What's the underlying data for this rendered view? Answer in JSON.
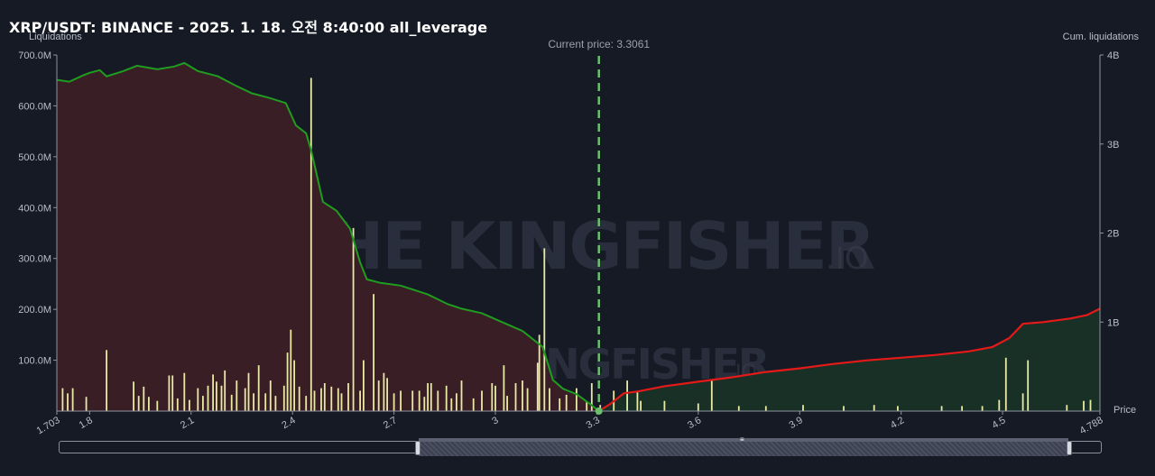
{
  "title": "XRP/USDT: BINANCE - 2025. 1. 18. 오전 8:40:00 all_leverage",
  "watermark": {
    "main": "THE KINGFISHER",
    "suffix": ".IO"
  },
  "colors": {
    "background": "#161a25",
    "short_fill": "#3a1e26",
    "long_fill": "#183025",
    "short_cum_line": "#1f9d1f",
    "long_cum_line": "#e61919",
    "bars": "#e8eaa4",
    "current_price_line": "#6cbf6c"
  },
  "chart_data": {
    "type": "bar",
    "title": "XRP/USDT: BINANCE - 2025. 1. 18. 오전 8:40:00 all_leverage",
    "xlabel": "Price",
    "ylabel": "Liquidations",
    "y2label": "Cum. liquidations",
    "xlim": [
      1.703,
      4.788
    ],
    "ylim": [
      0,
      700000000
    ],
    "y2lim": [
      0,
      4000000000
    ],
    "x_ticks": [
      "1.703",
      "1.8",
      "2.1",
      "2.4",
      "2.7",
      "3",
      "3.3",
      "3.6",
      "3.9",
      "4.2",
      "4.5",
      "4.788"
    ],
    "y_ticks": [
      "100.0M",
      "200.0M",
      "300.0M",
      "400.0M",
      "500.0M",
      "600.0M",
      "700.0M"
    ],
    "y2_ticks": [
      "1B",
      "2B",
      "3B",
      "4B"
    ],
    "current_price": 3.3061,
    "current_price_label": "Current price: 3.3061",
    "liquidation_bars": [
      [
        1.72,
        45
      ],
      [
        1.735,
        35
      ],
      [
        1.75,
        45
      ],
      [
        1.79,
        28
      ],
      [
        1.85,
        120
      ],
      [
        1.93,
        58
      ],
      [
        1.945,
        30
      ],
      [
        1.96,
        48
      ],
      [
        1.975,
        28
      ],
      [
        2.0,
        20
      ],
      [
        2.035,
        70
      ],
      [
        2.045,
        70
      ],
      [
        2.06,
        25
      ],
      [
        2.08,
        75
      ],
      [
        2.095,
        22
      ],
      [
        2.12,
        45
      ],
      [
        2.135,
        30
      ],
      [
        2.15,
        50
      ],
      [
        2.165,
        72
      ],
      [
        2.175,
        58
      ],
      [
        2.19,
        50
      ],
      [
        2.2,
        80
      ],
      [
        2.22,
        32
      ],
      [
        2.235,
        60
      ],
      [
        2.26,
        45
      ],
      [
        2.27,
        75
      ],
      [
        2.285,
        35
      ],
      [
        2.3,
        90
      ],
      [
        2.32,
        35
      ],
      [
        2.335,
        60
      ],
      [
        2.35,
        30
      ],
      [
        2.375,
        50
      ],
      [
        2.385,
        115
      ],
      [
        2.395,
        160
      ],
      [
        2.405,
        100
      ],
      [
        2.42,
        48
      ],
      [
        2.44,
        30
      ],
      [
        2.455,
        655
      ],
      [
        2.465,
        40
      ],
      [
        2.485,
        45
      ],
      [
        2.495,
        55
      ],
      [
        2.515,
        48
      ],
      [
        2.535,
        45
      ],
      [
        2.545,
        35
      ],
      [
        2.565,
        55
      ],
      [
        2.58,
        360
      ],
      [
        2.6,
        40
      ],
      [
        2.61,
        100
      ],
      [
        2.64,
        230
      ],
      [
        2.655,
        60
      ],
      [
        2.67,
        75
      ],
      [
        2.68,
        65
      ],
      [
        2.7,
        35
      ],
      [
        2.72,
        40
      ],
      [
        2.755,
        40
      ],
      [
        2.775,
        40
      ],
      [
        2.79,
        28
      ],
      [
        2.8,
        55
      ],
      [
        2.81,
        55
      ],
      [
        2.83,
        40
      ],
      [
        2.855,
        50
      ],
      [
        2.87,
        25
      ],
      [
        2.885,
        35
      ],
      [
        2.9,
        60
      ],
      [
        2.935,
        25
      ],
      [
        2.96,
        40
      ],
      [
        2.99,
        55
      ],
      [
        3.0,
        50
      ],
      [
        3.025,
        90
      ],
      [
        3.035,
        30
      ],
      [
        3.06,
        55
      ],
      [
        3.08,
        60
      ],
      [
        3.095,
        45
      ],
      [
        3.125,
        95
      ],
      [
        3.13,
        150
      ],
      [
        3.145,
        320
      ],
      [
        3.16,
        45
      ],
      [
        3.19,
        25
      ],
      [
        3.21,
        32
      ],
      [
        3.24,
        45
      ],
      [
        3.27,
        18
      ],
      [
        3.285,
        55
      ],
      [
        3.31,
        12
      ],
      [
        3.35,
        40
      ],
      [
        3.39,
        60
      ],
      [
        3.42,
        40
      ],
      [
        3.43,
        20
      ],
      [
        3.5,
        20
      ],
      [
        3.6,
        15
      ],
      [
        3.64,
        60
      ],
      [
        3.72,
        10
      ],
      [
        3.8,
        10
      ],
      [
        3.91,
        12
      ],
      [
        4.03,
        10
      ],
      [
        4.12,
        12
      ],
      [
        4.19,
        10
      ],
      [
        4.32,
        10
      ],
      [
        4.38,
        10
      ],
      [
        4.44,
        10
      ],
      [
        4.49,
        22
      ],
      [
        4.51,
        105
      ],
      [
        4.56,
        35
      ],
      [
        4.575,
        100
      ],
      [
        4.69,
        12
      ],
      [
        4.74,
        20
      ],
      [
        4.76,
        22
      ]
    ],
    "short_cumulative": [
      [
        1.703,
        3.72
      ],
      [
        1.74,
        3.7
      ],
      [
        1.78,
        3.77
      ],
      [
        1.8,
        3.8
      ],
      [
        1.83,
        3.83
      ],
      [
        1.85,
        3.76
      ],
      [
        1.9,
        3.82
      ],
      [
        1.94,
        3.88
      ],
      [
        2.0,
        3.84
      ],
      [
        2.05,
        3.87
      ],
      [
        2.08,
        3.91
      ],
      [
        2.12,
        3.82
      ],
      [
        2.18,
        3.76
      ],
      [
        2.23,
        3.66
      ],
      [
        2.28,
        3.57
      ],
      [
        2.33,
        3.52
      ],
      [
        2.38,
        3.46
      ],
      [
        2.41,
        3.21
      ],
      [
        2.44,
        3.12
      ],
      [
        2.455,
        2.93
      ],
      [
        2.49,
        2.35
      ],
      [
        2.53,
        2.25
      ],
      [
        2.57,
        2.05
      ],
      [
        2.6,
        1.67
      ],
      [
        2.62,
        1.48
      ],
      [
        2.66,
        1.44
      ],
      [
        2.72,
        1.41
      ],
      [
        2.8,
        1.31
      ],
      [
        2.86,
        1.2
      ],
      [
        2.9,
        1.15
      ],
      [
        2.96,
        1.1
      ],
      [
        3.02,
        1.0
      ],
      [
        3.08,
        0.9
      ],
      [
        3.14,
        0.72
      ],
      [
        3.17,
        0.35
      ],
      [
        3.2,
        0.25
      ],
      [
        3.24,
        0.19
      ],
      [
        3.28,
        0.08
      ],
      [
        3.3061,
        0.0
      ]
    ],
    "long_cumulative": [
      [
        3.3061,
        0.0
      ],
      [
        3.34,
        0.08
      ],
      [
        3.38,
        0.2
      ],
      [
        3.42,
        0.22
      ],
      [
        3.5,
        0.28
      ],
      [
        3.6,
        0.33
      ],
      [
        3.7,
        0.38
      ],
      [
        3.8,
        0.44
      ],
      [
        3.9,
        0.48
      ],
      [
        4.0,
        0.53
      ],
      [
        4.1,
        0.57
      ],
      [
        4.2,
        0.6
      ],
      [
        4.3,
        0.63
      ],
      [
        4.4,
        0.67
      ],
      [
        4.47,
        0.72
      ],
      [
        4.52,
        0.82
      ],
      [
        4.56,
        0.98
      ],
      [
        4.62,
        1.0
      ],
      [
        4.7,
        1.04
      ],
      [
        4.75,
        1.08
      ],
      [
        4.788,
        1.15
      ]
    ],
    "units": {
      "bars": "M",
      "cumulative": "B"
    }
  },
  "slider": {
    "grip": "≡"
  }
}
